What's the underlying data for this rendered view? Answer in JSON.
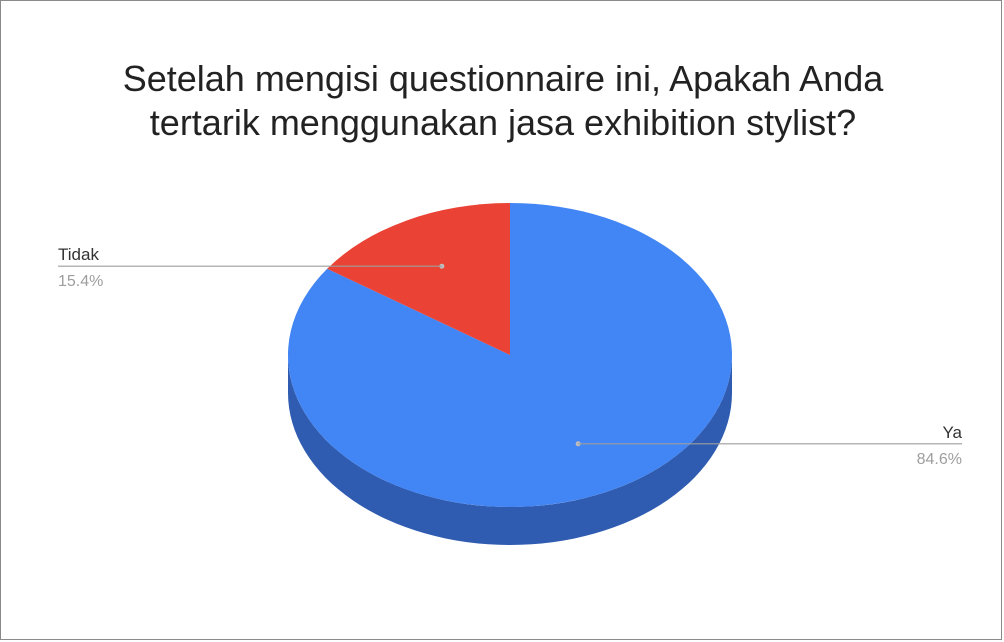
{
  "chart_data": {
    "type": "pie",
    "title_lines": [
      "Setelah mengisi questionnaire ini, Apakah Anda",
      "tertarik menggunakan jasa exhibition stylist?"
    ],
    "slices": [
      {
        "label": "Ya",
        "value": 84.6,
        "value_label": "84.6%",
        "color": "#4285f4",
        "side_color": "#2f5cb0"
      },
      {
        "label": "Tidak",
        "value": 15.4,
        "value_label": "15.4%",
        "color": "#ea4335",
        "side_color": "#a32f25"
      }
    ],
    "style": "3d",
    "legend": "none",
    "label_color": "#333333",
    "value_label_color": "#9e9e9e",
    "leader_color": "#9e9e9e"
  }
}
